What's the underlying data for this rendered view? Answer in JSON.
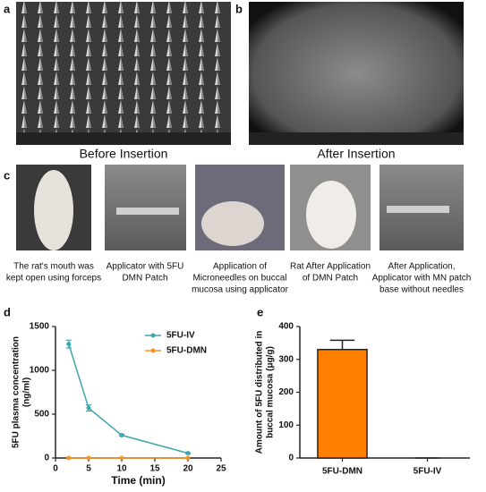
{
  "panels": {
    "labels": [
      "a",
      "b",
      "c",
      "d",
      "e"
    ],
    "image_captions": [
      "Before Insertion",
      "After Insertion"
    ],
    "photo_captions": [
      [
        "The rat's mouth was",
        "kept open using forceps"
      ],
      [
        "Applicator with 5FU",
        "DMN Patch"
      ],
      [
        "Application of",
        "Microneedles on buccal",
        "mucosa using applicator"
      ],
      [
        "Rat After Application",
        "of DMN Patch"
      ],
      [
        "After Application,",
        "Applicator with MN patch",
        "base without needles"
      ]
    ]
  },
  "chart_data": [
    {
      "type": "line",
      "x": [
        2,
        5,
        10,
        20
      ],
      "xlim": [
        0,
        25
      ],
      "xticks": [
        0,
        5,
        10,
        15,
        20,
        25
      ],
      "ylim": [
        0,
        1500
      ],
      "yticks": [
        0,
        500,
        1000,
        1500
      ],
      "xlabel": "Time (min)",
      "ylabel": [
        "5FU plasma concentration",
        "(ng/ml)"
      ],
      "legend": "upper right",
      "series": [
        {
          "name": "5FU-IV",
          "color": "#3ba7ae",
          "values": [
            1300,
            570,
            260,
            55
          ],
          "errors": [
            45,
            35,
            10,
            5
          ]
        },
        {
          "name": "5FU-DMN",
          "color": "#f7931e",
          "values": [
            0,
            0,
            0,
            0
          ]
        }
      ]
    },
    {
      "type": "bar",
      "categories": [
        "5FU-DMN",
        "5FU-IV"
      ],
      "values": [
        330,
        0
      ],
      "errors": [
        28,
        0
      ],
      "color": "#ff8000",
      "ylim": [
        0,
        400
      ],
      "yticks": [
        0,
        100,
        200,
        300,
        400
      ],
      "ylabel": [
        "Amount of 5FU distributed in",
        "buccal mucosa (μg/g)"
      ]
    }
  ]
}
